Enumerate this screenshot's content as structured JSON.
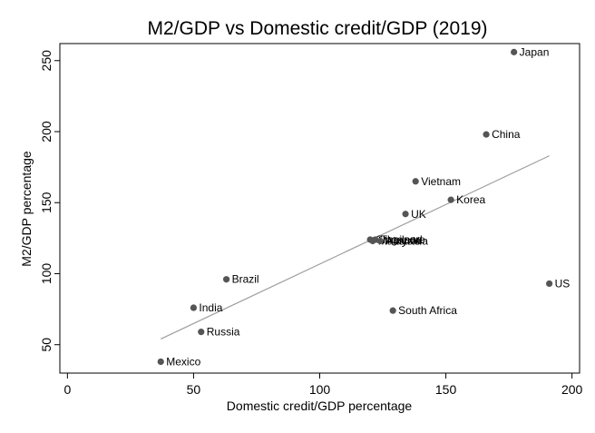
{
  "chart_data": {
    "type": "scatter",
    "title": "M2/GDP vs Domestic credit/GDP (2019)",
    "xlabel": "Domestic credit/GDP percentage",
    "ylabel": "M2/GDP percentage",
    "xlim": [
      -3,
      203
    ],
    "ylim": [
      30,
      262
    ],
    "xticks": [
      0,
      50,
      100,
      150,
      200
    ],
    "yticks": [
      50,
      100,
      150,
      200,
      250
    ],
    "grid": false,
    "points": [
      {
        "label": "Japan",
        "x": 177,
        "y": 256
      },
      {
        "label": "China",
        "x": 166,
        "y": 198
      },
      {
        "label": "Vietnam",
        "x": 138,
        "y": 165
      },
      {
        "label": "Korea",
        "x": 152,
        "y": 152
      },
      {
        "label": "UK",
        "x": 134,
        "y": 142
      },
      {
        "label": "Singapore",
        "x": 120,
        "y": 124
      },
      {
        "label": "Malaysia",
        "x": 121,
        "y": 123
      },
      {
        "label": "Thailand",
        "x": 122,
        "y": 124
      },
      {
        "label": "Australia",
        "x": 124,
        "y": 123
      },
      {
        "label": "Brazil",
        "x": 63,
        "y": 96
      },
      {
        "label": "US",
        "x": 191,
        "y": 93
      },
      {
        "label": "India",
        "x": 50,
        "y": 76
      },
      {
        "label": "South Africa",
        "x": 129,
        "y": 74
      },
      {
        "label": "Russia",
        "x": 53,
        "y": 59
      },
      {
        "label": "Mexico",
        "x": 37,
        "y": 38
      }
    ],
    "fit_line": {
      "x": [
        37,
        191
      ],
      "y": [
        54,
        183
      ]
    }
  },
  "colors": {
    "marker": "#555555",
    "fit_line": "#9e9e9e",
    "frame": "#000000"
  }
}
